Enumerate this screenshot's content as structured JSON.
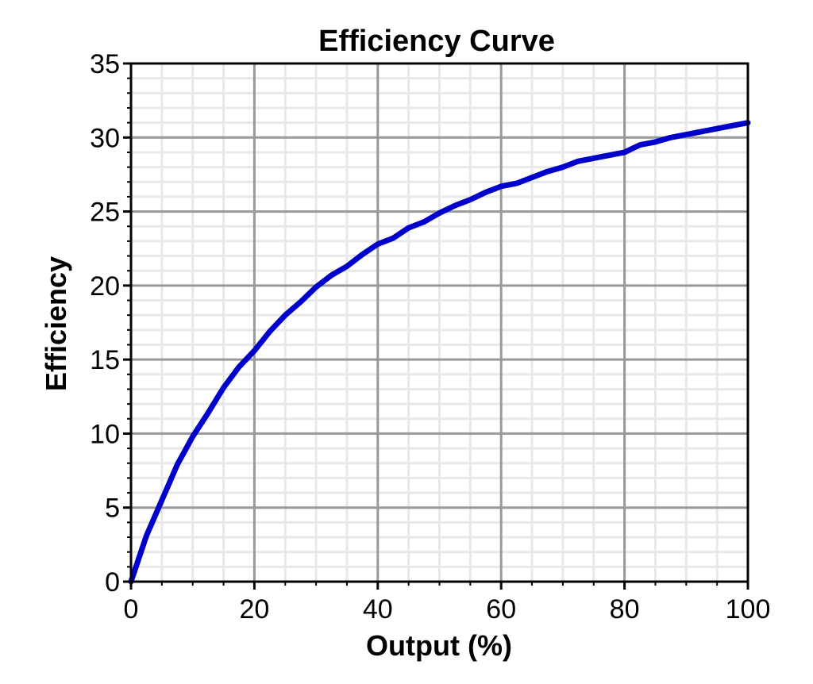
{
  "chart_data": {
    "type": "line",
    "title": "Efficiency Curve",
    "xlabel": "Output (%)",
    "ylabel": "Efficiency",
    "xlim": [
      0,
      100
    ],
    "ylim": [
      0,
      35
    ],
    "xticks": [
      0,
      20,
      40,
      60,
      80,
      100
    ],
    "yticks": [
      0,
      5,
      10,
      15,
      20,
      25,
      30,
      35
    ],
    "xtick_labels": [
      "0",
      "20",
      "40",
      "60",
      "80",
      "100"
    ],
    "ytick_labels": [
      "0",
      "5",
      "10",
      "15",
      "20",
      "25",
      "30",
      "35"
    ],
    "grid": true,
    "minor_grid": true,
    "legend": "none",
    "series": [
      {
        "color": "#0000cc",
        "x": [
          0,
          2.5,
          5,
          7.5,
          10,
          12.5,
          15,
          17.5,
          20,
          22.5,
          25,
          27.5,
          30,
          32.5,
          35,
          37.5,
          40,
          42.5,
          45,
          47.5,
          50,
          52.5,
          55,
          57.5,
          60,
          62.5,
          65,
          67.5,
          70,
          72.5,
          75,
          77.5,
          80,
          82.5,
          85,
          87.5,
          90,
          92.5,
          95,
          97.5,
          100
        ],
        "y": [
          0,
          3.1,
          5.5,
          7.9,
          9.8,
          11.4,
          13.1,
          14.5,
          15.6,
          16.9,
          18.0,
          18.9,
          19.9,
          20.7,
          21.3,
          22.1,
          22.8,
          23.2,
          23.9,
          24.3,
          24.9,
          25.4,
          25.8,
          26.3,
          26.7,
          26.9,
          27.3,
          27.7,
          28.0,
          28.4,
          28.6,
          28.8,
          29.0,
          29.5,
          29.7,
          30.0,
          30.2,
          30.4,
          30.6,
          30.8,
          31.0
        ]
      }
    ]
  }
}
